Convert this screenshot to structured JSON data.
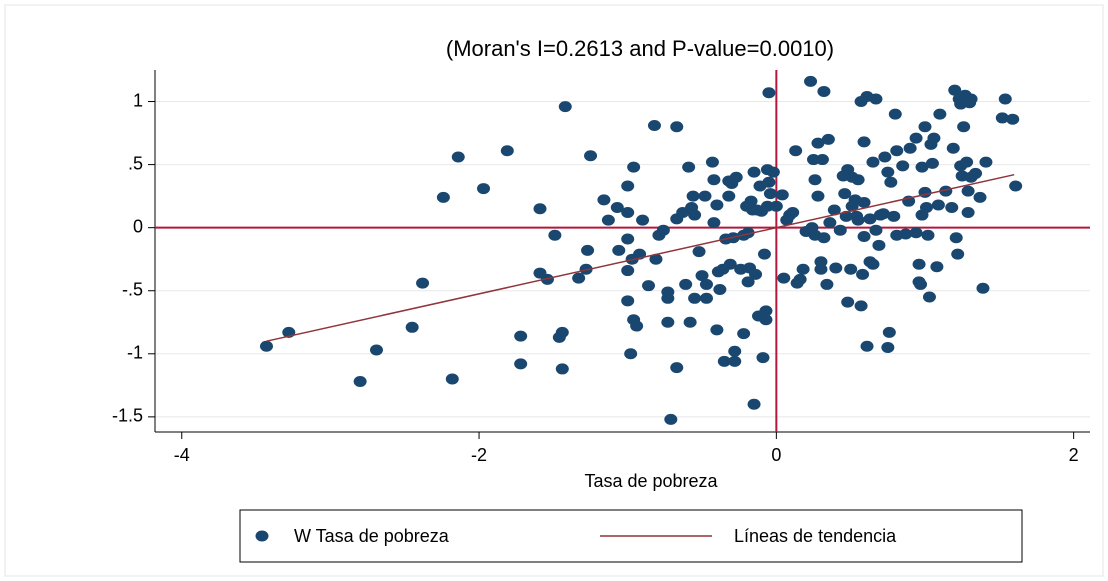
{
  "chart_data": {
    "type": "scatter",
    "title": "(Moran's I=0.2613 and P-value=0.0010)",
    "x_label": "Tasa de pobreza",
    "xlim": [
      -4.18,
      2.11
    ],
    "ylim": [
      -1.62,
      1.25
    ],
    "xticks": [
      -4,
      -2,
      0,
      2
    ],
    "yticks": [
      1,
      {
        "value": 0.5,
        "label": ".5"
      },
      0,
      {
        "value": -0.5,
        "label": "-.5"
      },
      -1,
      {
        "value": -1.5,
        "label": "-1.5"
      }
    ],
    "grid": true,
    "reference_lines": {
      "x": 0,
      "y": 0,
      "color": "#b5163c"
    },
    "legend": "bottom",
    "series": [
      {
        "name": "W Tasa de pobreza",
        "type": "scatter",
        "color": "#1a476f",
        "x": [
          -3.43,
          -3.28,
          -2.8,
          -2.69,
          -2.45,
          -2.38,
          -2.24,
          -2.18,
          -2.14,
          -1.97,
          -1.81,
          -1.72,
          -1.72,
          -1.59,
          -1.59,
          -1.54,
          -1.49,
          -1.46,
          -1.44,
          -1.44,
          -1.42,
          -1.33,
          -1.28,
          -1.27,
          -1.25,
          -1.16,
          -1.13,
          -1.07,
          -1.06,
          -1.0,
          -1.0,
          -1.0,
          -1.0,
          -1.0,
          -0.98,
          -0.97,
          -0.96,
          -0.96,
          -0.94,
          -0.92,
          -0.9,
          -0.86,
          -0.82,
          -0.81,
          -0.79,
          -0.76,
          -0.73,
          -0.73,
          -0.73,
          -0.71,
          -0.67,
          -0.67,
          -0.67,
          -0.63,
          -0.61,
          -0.59,
          -0.58,
          -0.57,
          -0.56,
          -0.55,
          -0.55,
          -0.52,
          -0.5,
          -0.48,
          -0.47,
          -0.47,
          -0.43,
          -0.42,
          -0.42,
          -0.4,
          -0.4,
          -0.39,
          -0.38,
          -0.36,
          -0.35,
          -0.34,
          -0.32,
          -0.32,
          -0.31,
          -0.3,
          -0.29,
          -0.28,
          -0.28,
          -0.27,
          -0.24,
          -0.22,
          -0.22,
          -0.2,
          -0.19,
          -0.19,
          -0.18,
          -0.17,
          -0.16,
          -0.15,
          -0.15,
          -0.14,
          -0.13,
          -0.12,
          -0.11,
          -0.1,
          -0.09,
          -0.08,
          -0.07,
          -0.07,
          -0.06,
          -0.06,
          -0.05,
          -0.05,
          -0.04,
          -0.02,
          0.0,
          0.04,
          0.05,
          0.07,
          0.09,
          0.11,
          0.13,
          0.14,
          0.16,
          0.18,
          0.2,
          0.23,
          0.24,
          0.25,
          0.26,
          0.26,
          0.28,
          0.28,
          0.3,
          0.3,
          0.31,
          0.32,
          0.32,
          0.34,
          0.35,
          0.36,
          0.39,
          0.4,
          0.43,
          0.45,
          0.46,
          0.47,
          0.48,
          0.48,
          0.5,
          0.51,
          0.51,
          0.53,
          0.54,
          0.55,
          0.55,
          0.57,
          0.57,
          0.58,
          0.59,
          0.59,
          0.59,
          0.61,
          0.61,
          0.63,
          0.63,
          0.65,
          0.65,
          0.67,
          0.67,
          0.69,
          0.7,
          0.72,
          0.73,
          0.75,
          0.75,
          0.76,
          0.77,
          0.79,
          0.8,
          0.81,
          0.81,
          0.85,
          0.87,
          0.89,
          0.9,
          0.94,
          0.94,
          0.96,
          0.96,
          0.97,
          0.98,
          0.98,
          1.0,
          1.0,
          1.01,
          1.02,
          1.03,
          1.04,
          1.05,
          1.06,
          1.08,
          1.09,
          1.1,
          1.14,
          1.18,
          1.19,
          1.2,
          1.21,
          1.22,
          1.23,
          1.24,
          1.24,
          1.25,
          1.26,
          1.27,
          1.28,
          1.29,
          1.29,
          1.3,
          1.31,
          1.31,
          1.34,
          1.37,
          1.39,
          1.41,
          1.54,
          1.52,
          1.59,
          1.61
        ],
        "values": [
          -0.94,
          -0.83,
          -1.22,
          -0.97,
          -0.79,
          -0.44,
          0.24,
          -1.2,
          0.56,
          0.31,
          0.61,
          -0.86,
          -1.08,
          -0.36,
          0.15,
          -0.41,
          -0.06,
          -0.87,
          -0.83,
          -1.12,
          0.96,
          -0.4,
          -0.33,
          -0.18,
          0.57,
          0.22,
          0.06,
          0.16,
          -0.18,
          -0.09,
          0.33,
          0.12,
          -0.34,
          -0.58,
          -1.0,
          -0.25,
          0.48,
          -0.73,
          -0.78,
          -0.21,
          0.06,
          -0.46,
          0.81,
          -0.25,
          -0.06,
          -0.02,
          -0.51,
          -0.56,
          -0.75,
          -1.52,
          0.8,
          0.07,
          -1.11,
          0.12,
          -0.45,
          0.48,
          -0.75,
          0.16,
          0.25,
          0.1,
          -0.56,
          -0.19,
          -0.38,
          0.25,
          -0.56,
          -0.45,
          0.52,
          0.38,
          0.04,
          -0.81,
          0.18,
          -0.35,
          -0.49,
          -0.33,
          -1.06,
          -0.09,
          0.37,
          0.25,
          -0.29,
          0.35,
          -0.08,
          -1.06,
          -0.98,
          0.4,
          -0.33,
          -0.84,
          -0.06,
          0.17,
          -0.04,
          -0.43,
          -0.32,
          0.21,
          0.14,
          -1.4,
          0.44,
          -0.37,
          0.14,
          -0.7,
          0.33,
          0.13,
          -1.03,
          -0.21,
          -0.73,
          -0.66,
          0.46,
          0.17,
          1.07,
          0.36,
          0.27,
          0.44,
          0.17,
          0.26,
          -0.4,
          0.06,
          0.1,
          0.12,
          0.61,
          -0.44,
          -0.41,
          -0.33,
          -0.03,
          1.16,
          0.0,
          0.54,
          -0.06,
          0.38,
          0.67,
          0.25,
          -0.27,
          -0.33,
          0.54,
          1.08,
          -0.08,
          -0.45,
          0.7,
          0.04,
          0.14,
          -0.32,
          -0.02,
          0.41,
          0.27,
          0.09,
          0.46,
          -0.59,
          -0.33,
          0.17,
          0.4,
          0.22,
          0.09,
          0.38,
          0.06,
          -0.62,
          1.0,
          -0.37,
          -0.07,
          0.2,
          0.68,
          1.04,
          -0.94,
          0.07,
          -0.27,
          -0.29,
          0.52,
          -0.02,
          1.02,
          -0.14,
          0.1,
          0.11,
          0.56,
          0.44,
          -0.95,
          -0.83,
          0.36,
          0.09,
          0.9,
          -0.06,
          0.61,
          0.49,
          -0.05,
          0.21,
          0.63,
          0.71,
          -0.04,
          -0.43,
          -0.29,
          -0.45,
          0.1,
          0.48,
          0.8,
          0.28,
          0.16,
          -0.06,
          -0.55,
          0.66,
          0.51,
          0.71,
          -0.31,
          0.18,
          0.9,
          0.29,
          0.16,
          0.63,
          1.09,
          -0.08,
          -0.21,
          1.02,
          0.98,
          0.49,
          0.41,
          0.8,
          1.05,
          0.52,
          0.29,
          0.12,
          0.99,
          1.02,
          0.4,
          0.43,
          0.24,
          -0.48,
          0.52,
          1.02,
          0.87,
          0.86,
          0.33
        ]
      },
      {
        "name": "Líneas de tendencia",
        "type": "line",
        "color": "#90353b",
        "x": [
          -3.43,
          1.6
        ],
        "values": [
          -0.9,
          0.42
        ]
      }
    ]
  }
}
